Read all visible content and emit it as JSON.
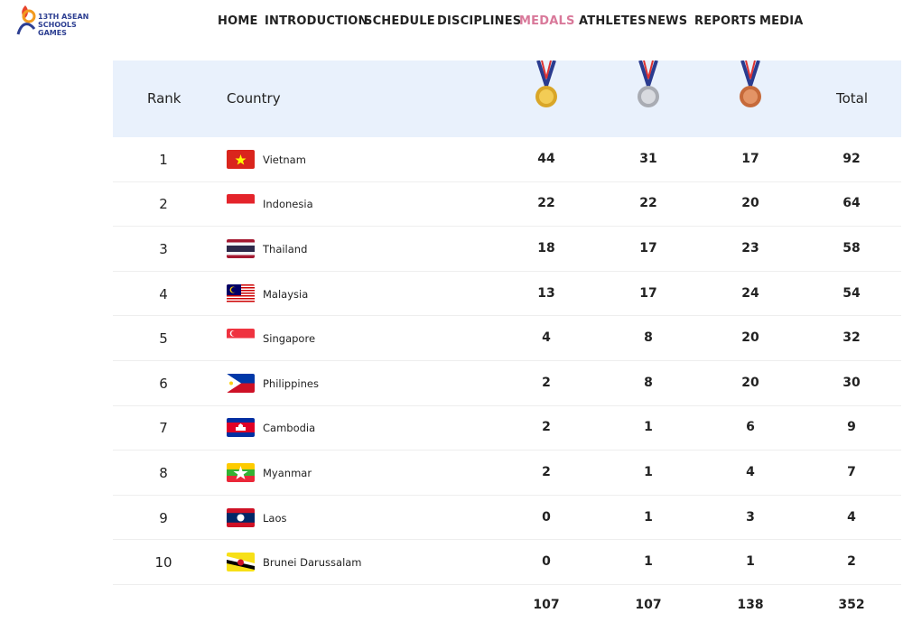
{
  "logo": {
    "line1": "13TH ASEAN",
    "line2": "SCHOOLS GAMES"
  },
  "nav": [
    "HOME",
    "INTRODUCTION",
    "SCHEDULE",
    "DISCIPLINES",
    "MEDALS",
    "ATHLETES",
    "NEWS",
    "REPORTS",
    "MEDIA"
  ],
  "nav_active": 4,
  "table": {
    "headers": [
      "Rank",
      "Country",
      "Total"
    ],
    "rows": [
      [
        1,
        "Vietnam",
        44,
        31,
        17,
        92
      ],
      [
        2,
        "Indonesia",
        22,
        22,
        20,
        64
      ],
      [
        3,
        "Thailand",
        18,
        17,
        23,
        58
      ],
      [
        4,
        "Malaysia",
        13,
        17,
        24,
        54
      ],
      [
        5,
        "Singapore",
        4,
        8,
        20,
        32
      ],
      [
        6,
        "Philippines",
        2,
        8,
        20,
        30
      ],
      [
        7,
        "Cambodia",
        2,
        1,
        6,
        9
      ],
      [
        8,
        "Myanmar",
        2,
        1,
        4,
        7
      ],
      [
        9,
        "Laos",
        0,
        1,
        3,
        4
      ],
      [
        10,
        "Brunei Darussalam",
        0,
        1,
        1,
        2
      ]
    ],
    "totals": [
      107,
      107,
      138,
      352
    ]
  }
}
